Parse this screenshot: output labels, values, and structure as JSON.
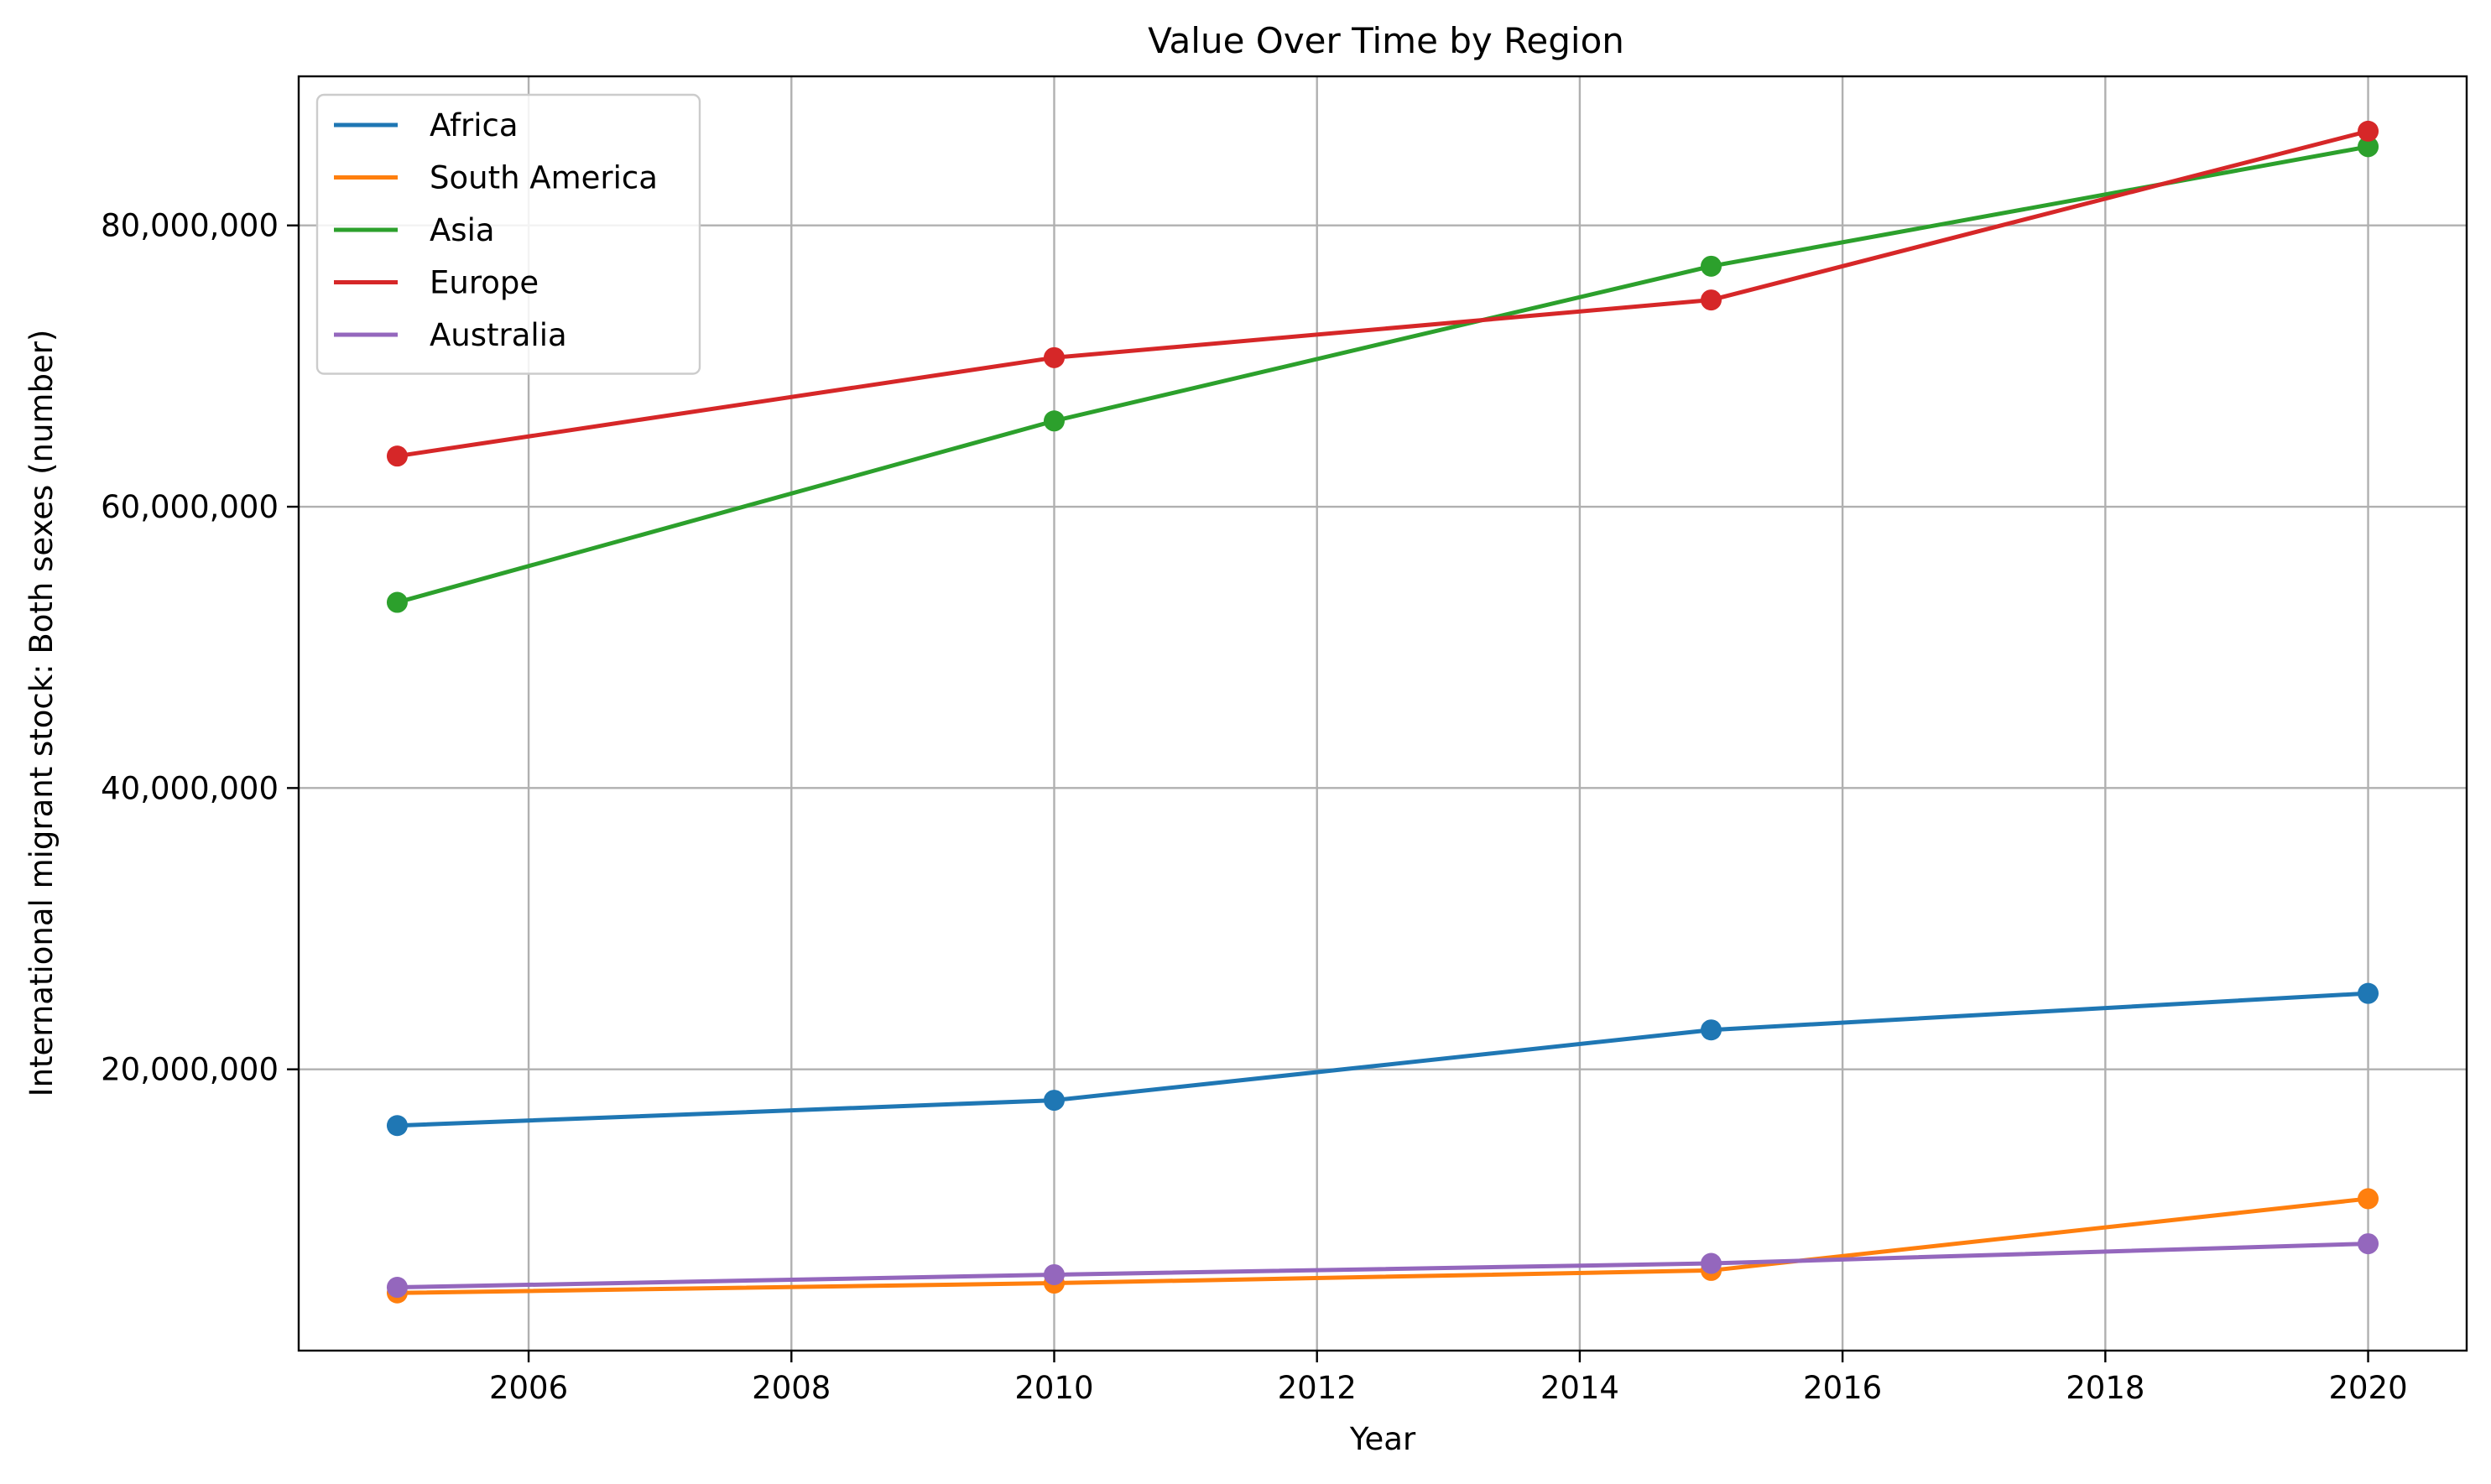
{
  "chart_data": {
    "type": "line",
    "title": "Value Over Time by Region",
    "xlabel": "Year",
    "ylabel": "International migrant stock: Both sexes (number)",
    "xlim": [
      2004.25,
      2020.75
    ],
    "ylim": [
      0,
      90600000
    ],
    "x_ticks": [
      2006,
      2008,
      2010,
      2012,
      2014,
      2016,
      2018,
      2020
    ],
    "x_tick_labels": [
      "2006",
      "2008",
      "2010",
      "2012",
      "2014",
      "2016",
      "2018",
      "2020"
    ],
    "y_ticks": [
      20000000,
      40000000,
      60000000,
      80000000
    ],
    "y_tick_labels": [
      "20,000,000",
      "40,000,000",
      "60,000,000",
      "80,000,000"
    ],
    "grid": true,
    "legend_position": "top-left",
    "x": [
      2005,
      2010,
      2015,
      2020
    ],
    "series": [
      {
        "name": "Africa",
        "color": "#1f77b4",
        "values": [
          16000000,
          17800000,
          22800000,
          25400000
        ]
      },
      {
        "name": "South America",
        "color": "#ff7f0e",
        "values": [
          4100000,
          4800000,
          5700000,
          10800000
        ]
      },
      {
        "name": "Asia",
        "color": "#2ca02c",
        "values": [
          53200000,
          66100000,
          77100000,
          85600000
        ]
      },
      {
        "name": "Europe",
        "color": "#d62728",
        "values": [
          63600000,
          70600000,
          74700000,
          86700000
        ]
      },
      {
        "name": "Australia",
        "color": "#9467bd",
        "values": [
          4500000,
          5400000,
          6200000,
          7600000
        ]
      }
    ]
  }
}
